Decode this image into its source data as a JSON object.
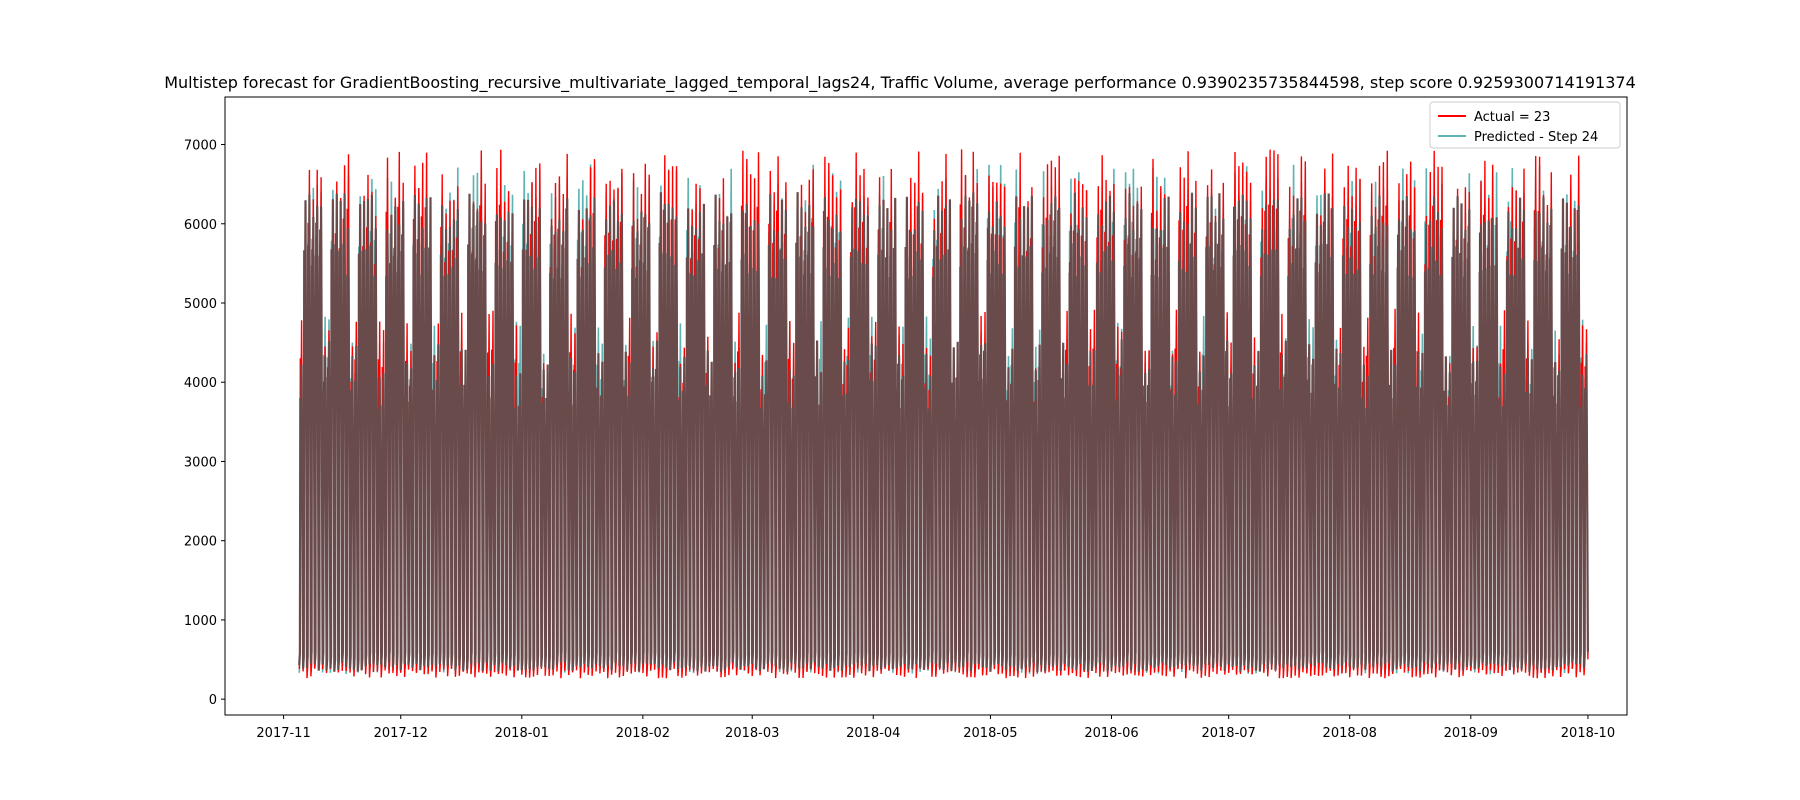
{
  "chart_data": {
    "type": "line",
    "title": "Multistep forecast for GradientBoosting_recursive_multivariate_lagged_temporal_lags24, Traffic Volume, average performance 0.9390235735844598, step score 0.9259300714191374",
    "xlabel": "",
    "ylabel": "",
    "x_range": [
      "2017-10-17",
      "2018-10-11"
    ],
    "x_data_range": [
      "2017-11-05",
      "2018-09-30"
    ],
    "ylim": [
      -200,
      7600
    ],
    "yticks": [
      0,
      1000,
      2000,
      3000,
      4000,
      5000,
      6000,
      7000
    ],
    "xticks": [
      "2017-11",
      "2017-12",
      "2018-01",
      "2018-02",
      "2018-03",
      "2018-04",
      "2018-05",
      "2018-06",
      "2018-07",
      "2018-08",
      "2018-09",
      "2018-10"
    ],
    "grid": false,
    "legend_position": "upper right",
    "series": [
      {
        "name": "Actual = 23",
        "color": "#ff0000",
        "pattern": "hourly traffic volume, daily cycle",
        "typical_daily_low": 300,
        "typical_weekday_peak": 6500,
        "typical_weekend_peak": 4500,
        "max": 7200,
        "min": 150
      },
      {
        "name": "Predicted - Step 24",
        "color": "#5fb3b3",
        "pattern": "hourly traffic volume forecast, daily cycle",
        "typical_daily_low": 350,
        "typical_weekday_peak": 6400,
        "typical_weekend_peak": 4500,
        "max": 6800,
        "min": 300
      }
    ],
    "overlap_color": "#6a4b4b"
  }
}
